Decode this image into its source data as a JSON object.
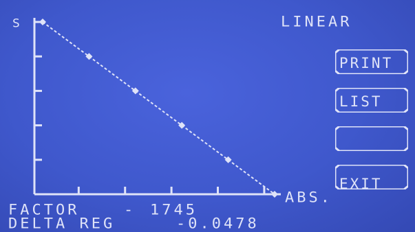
{
  "screen": {
    "mode_label": "LINEAR",
    "y_axis_label": "S",
    "x_axis_label": "ABS."
  },
  "softkeys": [
    {
      "id": "print",
      "label": "PRINT"
    },
    {
      "id": "list",
      "label": "LIST"
    },
    {
      "id": "blank",
      "label": ""
    },
    {
      "id": "exit",
      "label": "EXIT"
    }
  ],
  "footer": {
    "factor_label": "FACTOR",
    "factor_sep": "-",
    "factor_value": "1745",
    "delta_label": "DELTA REG",
    "delta_value": "-0.0478"
  },
  "colors": {
    "foreground": "#dfe3f8",
    "background": "#3f58cc"
  },
  "chart_data": {
    "type": "line",
    "x": [
      0,
      1,
      2,
      3,
      4,
      5
    ],
    "values": [
      5,
      4,
      3,
      2,
      1,
      0
    ],
    "xlim": [
      0,
      5
    ],
    "ylim": [
      0,
      5
    ],
    "line_style": "dashed",
    "marker": "diamond",
    "grid": false
  }
}
